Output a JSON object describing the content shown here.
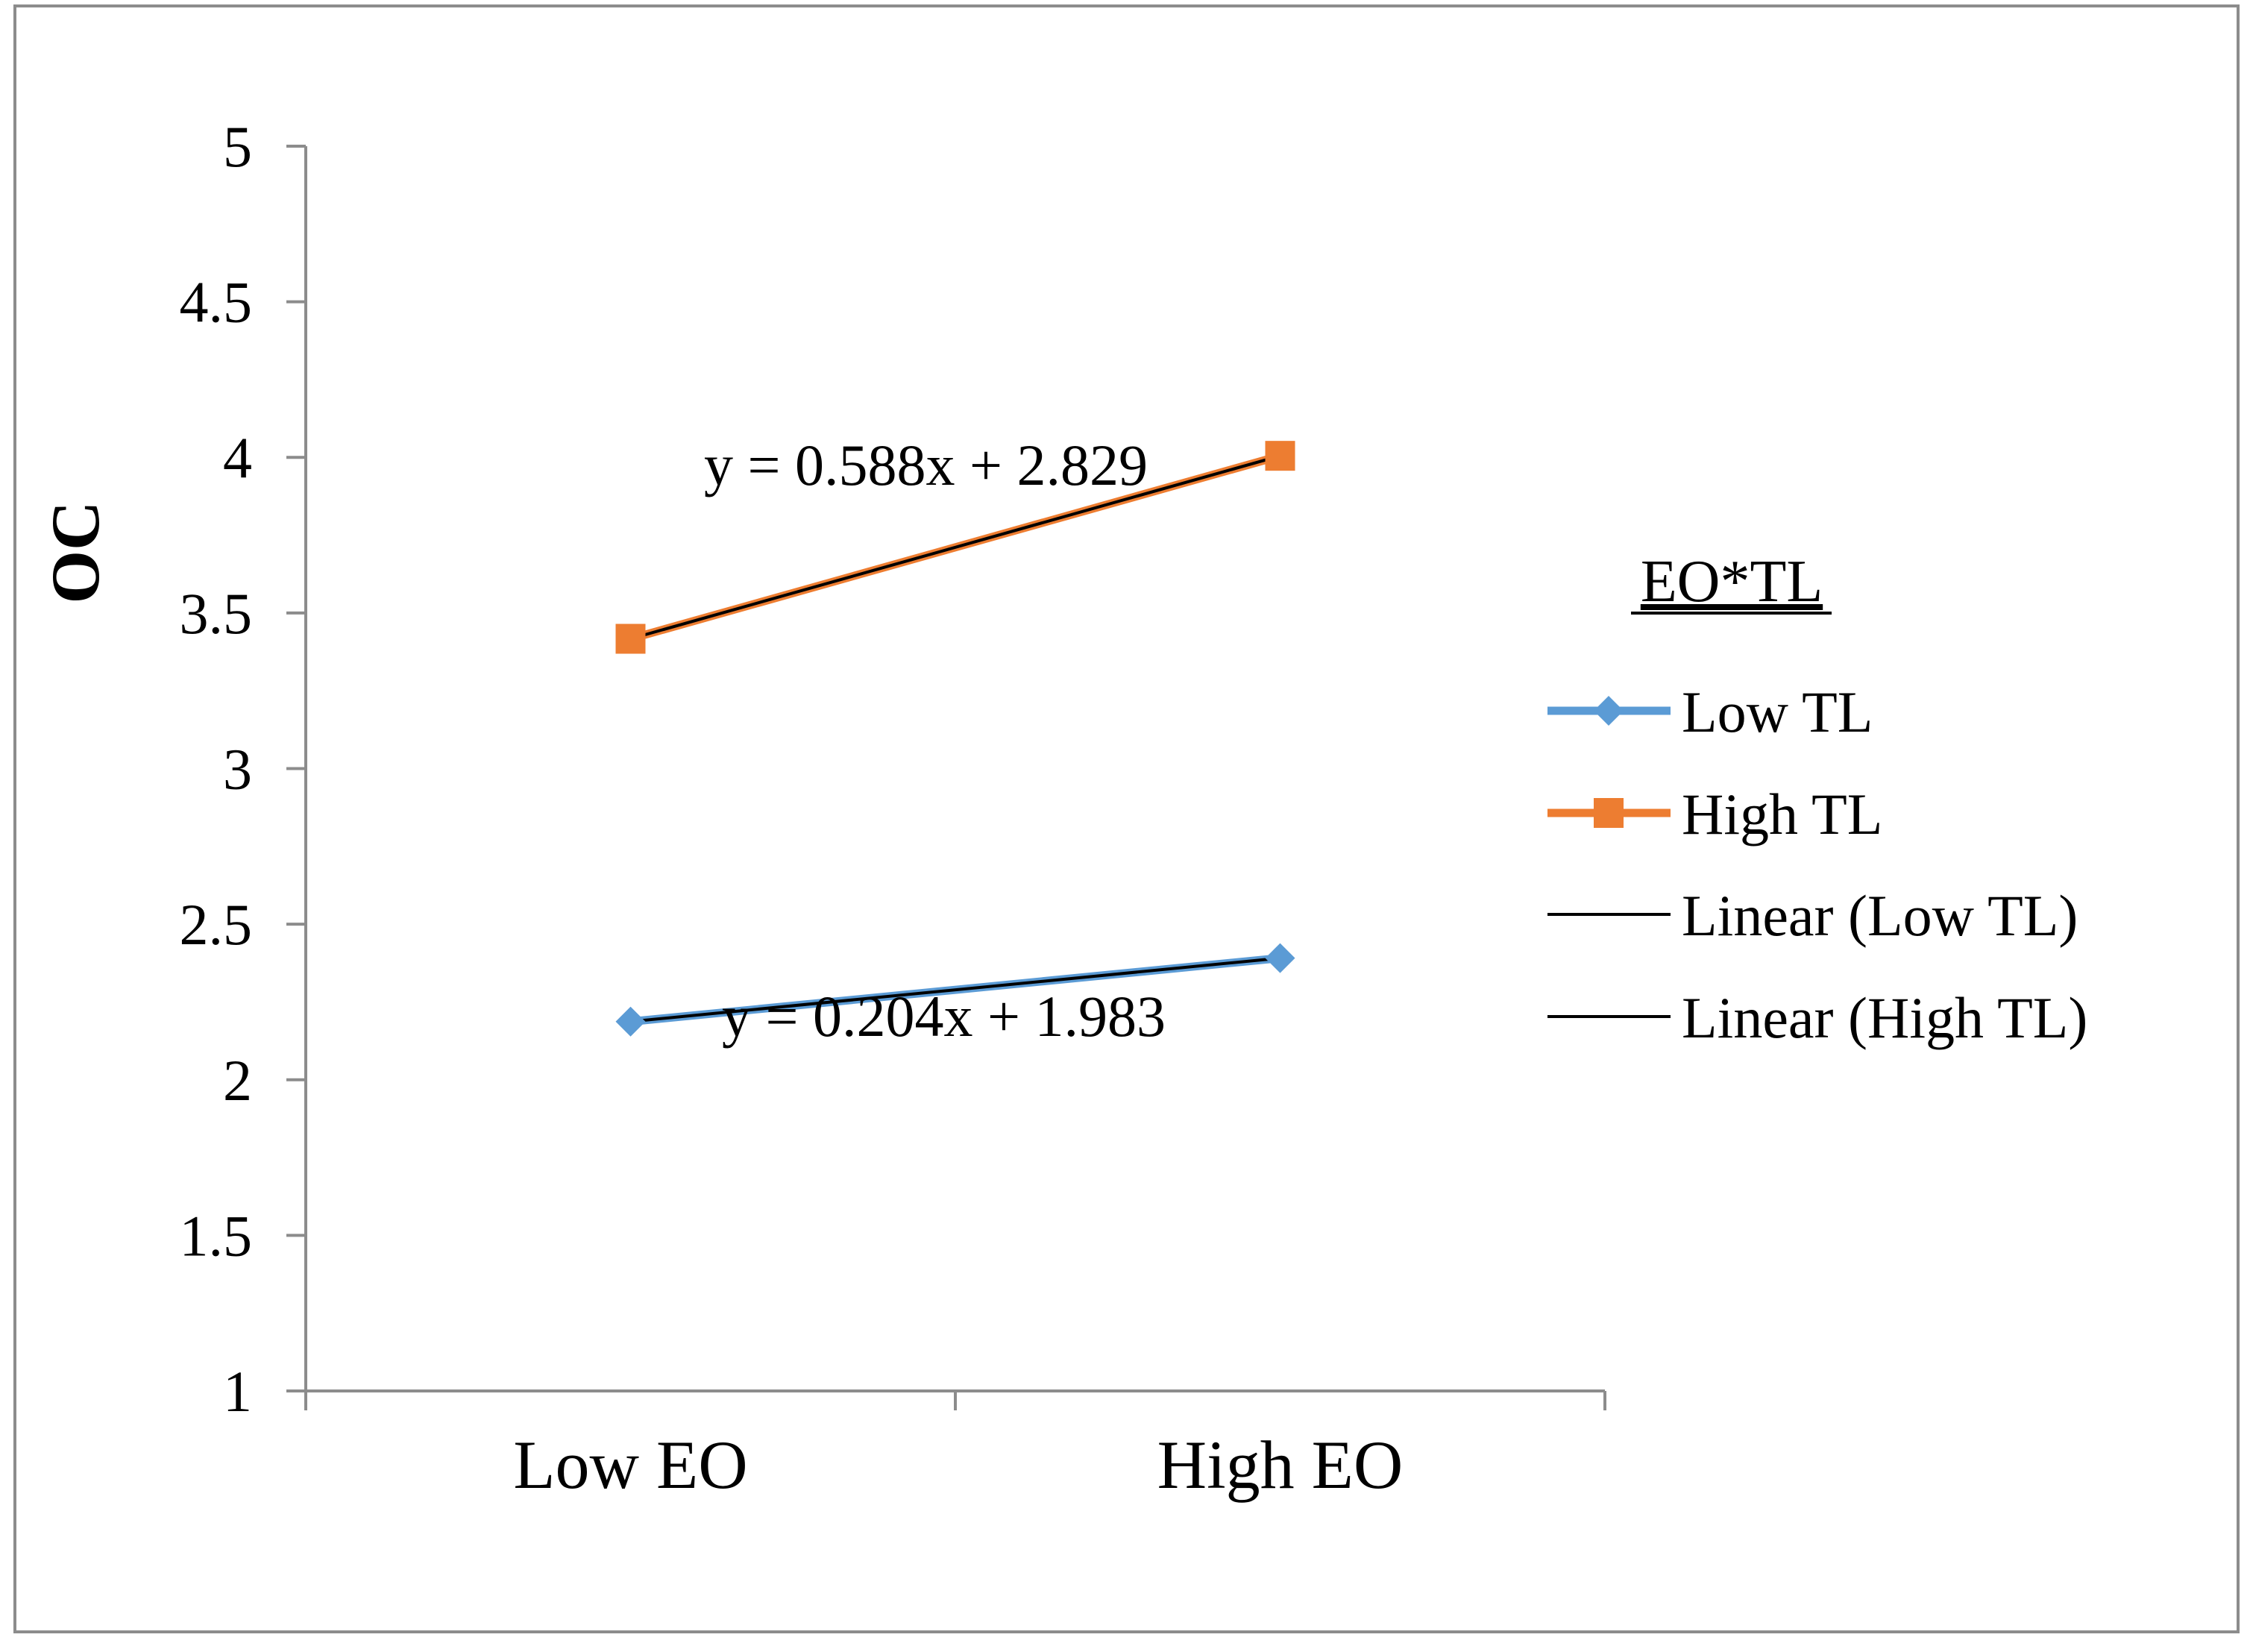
{
  "chart_data": {
    "type": "line",
    "title": "",
    "xlabel": "",
    "ylabel": "OC",
    "categories": [
      "Low EO",
      "High EO"
    ],
    "ylim": [
      1,
      5
    ],
    "yticks": [
      "1",
      "1.5",
      "2",
      "2.5",
      "3",
      "3.5",
      "4",
      "4.5",
      "5"
    ],
    "ytick_values": [
      1,
      1.5,
      2,
      2.5,
      3,
      3.5,
      4,
      4.5,
      5
    ],
    "grid": false,
    "legend_title": "EO*TL",
    "legend_position": "right",
    "series": [
      {
        "name": "Low TL",
        "values": [
          2.187,
          2.391
        ],
        "color": "#5B9BD5",
        "marker": "diamond"
      },
      {
        "name": "High TL",
        "values": [
          3.417,
          4.005
        ],
        "color": "#ED7D31",
        "marker": "square"
      }
    ],
    "trendlines": [
      {
        "name": "Linear (Low TL)",
        "slope": 0.204,
        "intercept": 1.983,
        "color": "#000000",
        "equation": "y = 0.204x + 1.983"
      },
      {
        "name": "Linear (High TL)",
        "slope": 0.588,
        "intercept": 2.829,
        "color": "#000000",
        "equation": "y = 0.588x + 2.829"
      }
    ]
  }
}
